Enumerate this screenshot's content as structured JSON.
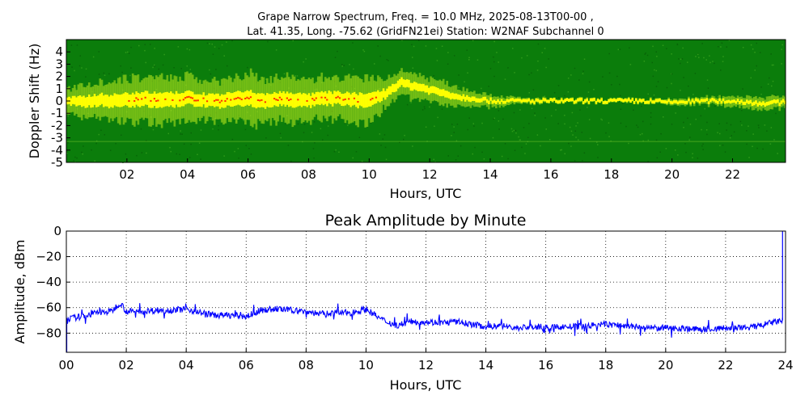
{
  "chart_data": [
    {
      "type": "heatmap",
      "title_line1": "Grape Narrow Spectrum, Freq. = 10.0 MHz, 2025-08-13T00-00 ,",
      "title_line2": "Lat.  41.35, Long. -75.62 (GridFN21ei) Station: W2NAF Subchannel 0",
      "xlabel": "Hours, UTC",
      "ylabel": "Doppler Shift (Hz)",
      "xlim": [
        0,
        23.75
      ],
      "ylim": [
        -5,
        5
      ],
      "xticks": [
        2,
        4,
        6,
        8,
        10,
        12,
        14,
        16,
        18,
        20,
        22
      ],
      "xtick_labels": [
        "02",
        "04",
        "06",
        "08",
        "10",
        "12",
        "14",
        "16",
        "18",
        "20",
        "22"
      ],
      "yticks": [
        4,
        3,
        2,
        1,
        0,
        -1,
        -2,
        -3,
        -4,
        -5
      ],
      "ytick_labels": [
        "4",
        "3",
        "2",
        "1",
        "0",
        "-1",
        "-2",
        "-3",
        "-4",
        "-5"
      ],
      "colors": {
        "background": "#0b7d0b",
        "mid": "#b5e61d",
        "high": "#ffff00",
        "peak": "#ff3300"
      },
      "trace": {
        "hours": [
          0,
          0.5,
          1,
          1.5,
          2,
          2.5,
          3,
          3.5,
          4,
          4.5,
          5,
          5.5,
          6,
          6.5,
          7,
          7.5,
          8,
          8.5,
          9,
          9.5,
          10,
          10.5,
          11,
          11.5,
          12,
          12.5,
          13,
          13.5,
          14,
          14.5,
          15,
          16,
          17,
          18,
          19,
          20,
          21,
          22,
          23,
          23.75
        ],
        "doppler_hz": [
          0,
          -0.1,
          0.1,
          0,
          0.1,
          0.2,
          0,
          0.1,
          0.2,
          0.1,
          0,
          0.1,
          0.2,
          0,
          0.2,
          0.1,
          0,
          0.2,
          0.2,
          0.1,
          0,
          0.6,
          1.5,
          1.2,
          0.9,
          0.6,
          0.3,
          0.2,
          0,
          0,
          0,
          0,
          0,
          0,
          0,
          -0.1,
          0,
          0,
          -0.2,
          -0.1
        ],
        "spread_hz": [
          0.8,
          1.2,
          1.3,
          1.4,
          1.5,
          1.6,
          1.7,
          1.6,
          1.5,
          1.4,
          1.5,
          1.6,
          1.7,
          1.6,
          1.5,
          1.6,
          1.4,
          1.5,
          1.4,
          1.5,
          1.6,
          1.0,
          0.9,
          0.9,
          0.8,
          0.8,
          0.6,
          0.5,
          0.4,
          0.3,
          0.2,
          0.15,
          0.15,
          0.15,
          0.15,
          0.2,
          0.25,
          0.35,
          0.45,
          0.4
        ]
      }
    },
    {
      "type": "line",
      "title": "Peak Amplitude by Minute",
      "xlabel": "Hours, UTC",
      "ylabel": "Amplitude, dBm",
      "xlim": [
        0,
        24
      ],
      "ylim": [
        -95,
        0
      ],
      "grid": true,
      "xticks": [
        0,
        2,
        4,
        6,
        8,
        10,
        12,
        14,
        16,
        18,
        20,
        22,
        24
      ],
      "xtick_labels": [
        "00",
        "02",
        "04",
        "06",
        "08",
        "10",
        "12",
        "14",
        "16",
        "18",
        "20",
        "22",
        "24"
      ],
      "yticks": [
        0,
        -20,
        -40,
        -60,
        -80
      ],
      "ytick_labels": [
        "0",
        "−20",
        "−40",
        "−60",
        "−80"
      ],
      "series": [
        {
          "color": "#0000ff",
          "x": [
            0,
            0.5,
            1,
            1.5,
            1.8,
            2,
            2.5,
            3,
            3.5,
            4,
            4.5,
            5,
            5.5,
            6,
            6.5,
            7,
            7.5,
            8,
            8.5,
            9,
            9.5,
            10,
            10.5,
            11,
            11.5,
            12,
            12.5,
            13,
            13.5,
            14,
            14.5,
            15,
            15.5,
            16,
            16.5,
            17,
            17.5,
            18,
            18.5,
            19,
            19.5,
            20,
            20.5,
            21,
            21.5,
            22,
            22.5,
            23,
            23.5,
            23.9
          ],
          "y": [
            -69,
            -67,
            -64,
            -63,
            -56,
            -63,
            -63,
            -62,
            -62,
            -61,
            -64,
            -66,
            -66,
            -67,
            -62,
            -61,
            -62,
            -63,
            -65,
            -64,
            -64,
            -61,
            -69,
            -74,
            -71,
            -71,
            -72,
            -71,
            -73,
            -75,
            -74,
            -76,
            -75,
            -76,
            -75,
            -75,
            -74,
            -73,
            -74,
            -75,
            -76,
            -76,
            -76,
            -77,
            -77,
            -76,
            -76,
            -75,
            -72,
            -70
          ]
        }
      ]
    }
  ]
}
